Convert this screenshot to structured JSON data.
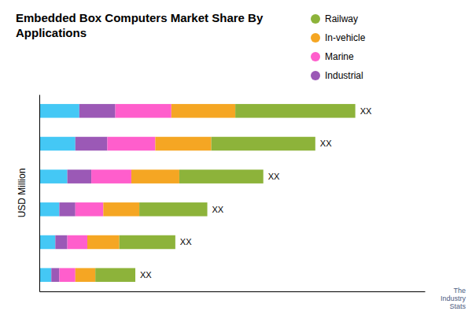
{
  "chart_data": {
    "type": "bar",
    "orientation": "horizontal",
    "stacked": true,
    "title": "Embedded Box Computers Market Share By\nApplications",
    "ylabel": "USD Million",
    "categories": [
      null,
      null,
      null,
      null,
      null,
      null
    ],
    "series": [
      {
        "color": "#44C8F5",
        "values": [
          10,
          9,
          7,
          5,
          4,
          3
        ]
      },
      {
        "name": "Industrial",
        "color": "#9B59B6",
        "values": [
          9,
          8,
          6,
          4,
          3,
          2
        ]
      },
      {
        "name": "Marine",
        "color": "#FF5ECC",
        "values": [
          14,
          12,
          10,
          7,
          5,
          4
        ]
      },
      {
        "name": "In-vehicle",
        "color": "#F5A623",
        "values": [
          16,
          14,
          12,
          9,
          8,
          5
        ]
      },
      {
        "name": "Railway",
        "color": "#8DB33A",
        "values": [
          30,
          26,
          21,
          17,
          14,
          10
        ]
      }
    ],
    "xlim": [
      0,
      96.38
    ],
    "xticks": [],
    "tick_labels": false,
    "grid": false,
    "legend": "top",
    "data_labels": false,
    "annotations": [
      {
        "text": "XX",
        "category": 0
      },
      {
        "text": "XX",
        "category": 1
      },
      {
        "text": "XX",
        "category": 2
      },
      {
        "text": "XX",
        "category": 3
      },
      {
        "text": "XX",
        "category": 4
      },
      {
        "text": "XX",
        "category": 5
      },
      {
        "text": "The\nIndustry\nStats",
        "color": "#2C3E6B"
      }
    ]
  }
}
